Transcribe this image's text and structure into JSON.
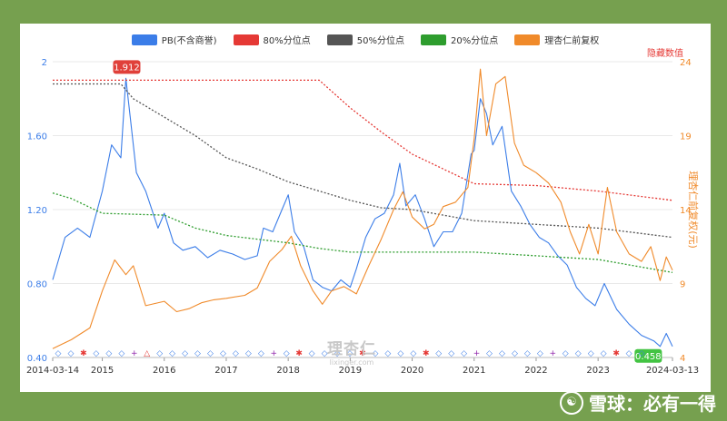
{
  "chart_data": {
    "type": "line",
    "x_range": [
      "2014-03-14",
      "2024-03-13"
    ],
    "x_tick_labels": [
      "2014-03-14",
      "2015",
      "2016",
      "2017",
      "2018",
      "2019",
      "2020",
      "2021",
      "2022",
      "2023",
      "2024-03-13"
    ],
    "x_tick_years": [
      2014.2,
      2015,
      2016,
      2017,
      2018,
      2019,
      2020,
      2021,
      2022,
      2023,
      2024.2
    ],
    "left_axis": {
      "ticks": [
        0.4,
        0.8,
        1.2,
        1.6,
        2
      ],
      "tick_labels": [
        "0.40",
        "0.80",
        "1.20",
        "1.60",
        "2"
      ],
      "ylim": [
        0.4,
        2.0
      ]
    },
    "right_axis": {
      "label": "理杏仁前复权(元)",
      "ticks": [
        4,
        9,
        14,
        19,
        24
      ],
      "ylim": [
        4,
        24
      ]
    },
    "hidden_values_label": "隐藏数值",
    "series": [
      {
        "name": "PB(不含商誉)",
        "color": "#3b7de8",
        "axis": "left",
        "t": [
          2014.2,
          2014.4,
          2014.6,
          2014.8,
          2015.0,
          2015.15,
          2015.3,
          2015.38,
          2015.45,
          2015.55,
          2015.7,
          2015.9,
          2016.0,
          2016.15,
          2016.3,
          2016.5,
          2016.7,
          2016.9,
          2017.1,
          2017.3,
          2017.5,
          2017.6,
          2017.75,
          2017.9,
          2018.0,
          2018.1,
          2018.25,
          2018.4,
          2018.55,
          2018.7,
          2018.85,
          2019.0,
          2019.1,
          2019.25,
          2019.4,
          2019.55,
          2019.7,
          2019.8,
          2019.9,
          2020.05,
          2020.2,
          2020.35,
          2020.5,
          2020.65,
          2020.8,
          2020.95,
          2021.0,
          2021.1,
          2021.2,
          2021.3,
          2021.45,
          2021.6,
          2021.75,
          2021.9,
          2022.05,
          2022.2,
          2022.35,
          2022.5,
          2022.65,
          2022.8,
          2022.95,
          2023.1,
          2023.3,
          2023.5,
          2023.7,
          2023.9,
          2024.0,
          2024.1,
          2024.2
        ],
        "v": [
          0.82,
          1.05,
          1.1,
          1.05,
          1.3,
          1.55,
          1.48,
          1.91,
          1.7,
          1.4,
          1.3,
          1.1,
          1.18,
          1.02,
          0.98,
          1.0,
          0.94,
          0.98,
          0.96,
          0.93,
          0.95,
          1.1,
          1.08,
          1.2,
          1.28,
          1.08,
          1.0,
          0.82,
          0.78,
          0.76,
          0.82,
          0.78,
          0.88,
          1.05,
          1.15,
          1.18,
          1.28,
          1.45,
          1.22,
          1.28,
          1.15,
          1.0,
          1.08,
          1.08,
          1.18,
          1.5,
          1.52,
          1.8,
          1.72,
          1.55,
          1.65,
          1.3,
          1.22,
          1.12,
          1.05,
          1.02,
          0.95,
          0.9,
          0.78,
          0.72,
          0.68,
          0.8,
          0.66,
          0.58,
          0.52,
          0.49,
          0.46,
          0.53,
          0.46
        ]
      },
      {
        "name": "80%分位点",
        "color": "#e53935",
        "axis": "left",
        "t": [
          2014.2,
          2018.5,
          2019.0,
          2019.5,
          2020.0,
          2020.5,
          2021.0,
          2022.0,
          2023.0,
          2024.2
        ],
        "v": [
          1.9,
          1.9,
          1.75,
          1.62,
          1.5,
          1.42,
          1.34,
          1.33,
          1.3,
          1.25
        ]
      },
      {
        "name": "50%分位点",
        "color": "#555555",
        "axis": "left",
        "t": [
          2014.2,
          2015.3,
          2015.5,
          2016.0,
          2016.5,
          2017.0,
          2017.5,
          2018.0,
          2019.0,
          2019.5,
          2020.0,
          2021.0,
          2022.0,
          2023.0,
          2024.2
        ],
        "v": [
          1.88,
          1.88,
          1.8,
          1.7,
          1.6,
          1.48,
          1.42,
          1.35,
          1.25,
          1.21,
          1.2,
          1.14,
          1.12,
          1.1,
          1.05
        ]
      },
      {
        "name": "20%分位点",
        "color": "#2e9d2e",
        "axis": "left",
        "t": [
          2014.2,
          2014.5,
          2015.0,
          2016.0,
          2016.5,
          2017.0,
          2017.5,
          2018.0,
          2018.5,
          2019.0,
          2019.5,
          2020.0,
          2021.0,
          2022.0,
          2023.0,
          2024.2
        ],
        "v": [
          1.29,
          1.26,
          1.18,
          1.17,
          1.1,
          1.06,
          1.04,
          1.02,
          0.99,
          0.97,
          0.97,
          0.97,
          0.97,
          0.95,
          0.93,
          0.86
        ]
      },
      {
        "name": "理杏仁前复权",
        "color": "#f08a2a",
        "axis": "right",
        "t": [
          2014.2,
          2014.5,
          2014.8,
          2015.0,
          2015.2,
          2015.38,
          2015.5,
          2015.7,
          2016.0,
          2016.2,
          2016.4,
          2016.6,
          2016.8,
          2017.0,
          2017.3,
          2017.5,
          2017.7,
          2017.9,
          2018.05,
          2018.2,
          2018.4,
          2018.55,
          2018.7,
          2018.9,
          2019.1,
          2019.3,
          2019.5,
          2019.7,
          2019.85,
          2020.0,
          2020.2,
          2020.35,
          2020.5,
          2020.7,
          2020.9,
          2021.0,
          2021.1,
          2021.2,
          2021.35,
          2021.5,
          2021.65,
          2021.8,
          2022.0,
          2022.2,
          2022.4,
          2022.55,
          2022.7,
          2022.85,
          2023.0,
          2023.15,
          2023.3,
          2023.5,
          2023.7,
          2023.85,
          2024.0,
          2024.1,
          2024.2
        ],
        "v": [
          4.6,
          5.2,
          6.0,
          8.5,
          10.6,
          9.6,
          10.2,
          7.5,
          7.8,
          7.1,
          7.3,
          7.7,
          7.9,
          8.0,
          8.2,
          8.7,
          10.5,
          11.3,
          12.2,
          10.2,
          8.5,
          7.6,
          8.5,
          8.8,
          8.3,
          10.2,
          12.0,
          14.0,
          15.2,
          13.5,
          12.7,
          13.0,
          14.2,
          14.5,
          15.5,
          18.8,
          23.5,
          19.0,
          22.5,
          23.0,
          18.5,
          17.0,
          16.5,
          15.8,
          14.5,
          12.5,
          11.0,
          13.0,
          11.0,
          15.5,
          12.5,
          11.0,
          10.5,
          11.5,
          9.2,
          10.8,
          9.9
        ]
      }
    ],
    "annotations": {
      "max_label": "1.912",
      "min_label": "0.458"
    },
    "event_markers": [
      "◇",
      "◇",
      "✱",
      "◇",
      "◇",
      "◇",
      "+",
      "△",
      "◇",
      "◇",
      "◇",
      "◇",
      "◇",
      "◇",
      "◇",
      "◇",
      "◇",
      "+",
      "◇",
      "✱",
      "◇",
      "◇",
      "◇",
      "◇",
      "✱",
      "◇",
      "◇",
      "◇",
      "◇",
      "✱",
      "◇",
      "◇",
      "◇",
      "+",
      "◇",
      "◇",
      "◇",
      "◇",
      "◇",
      "+",
      "◇",
      "◇",
      "◇",
      "◇",
      "✱",
      "◇",
      "◇"
    ]
  },
  "watermark": {
    "brand": "理杏仁",
    "url": "lixinger.com"
  },
  "footer": {
    "icon": "☯",
    "text": "雪球：必有一得"
  }
}
